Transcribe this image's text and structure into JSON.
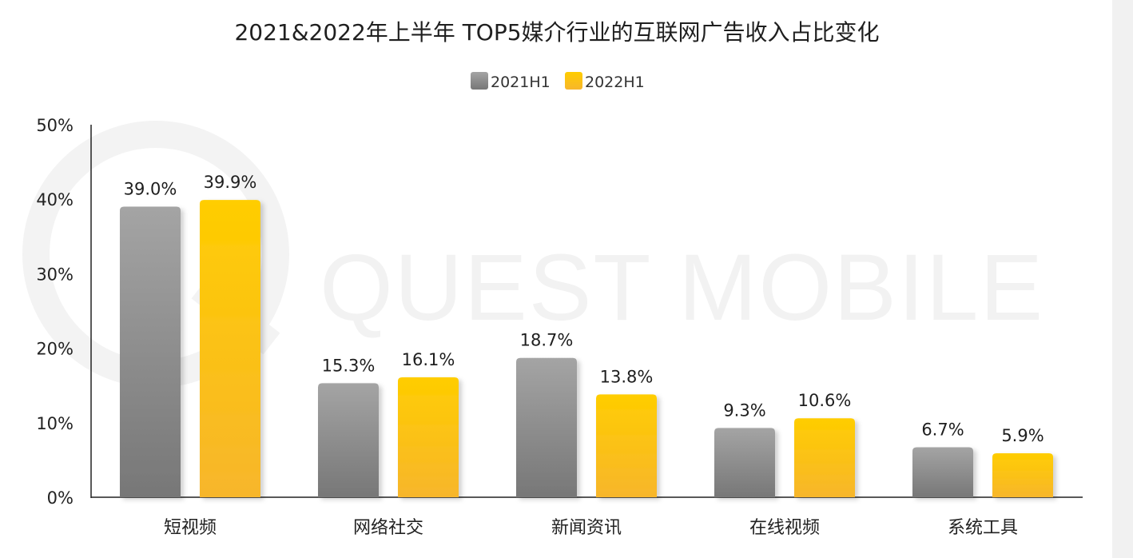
{
  "chart_data": {
    "type": "bar",
    "title": "2021&2022年上半年 TOP5媒介行业的互联网广告收入占比变化",
    "categories": [
      "短视频",
      "网络社交",
      "新闻资讯",
      "在线视频",
      "系统工具"
    ],
    "series": [
      {
        "name": "2021H1",
        "values": [
          39.0,
          15.3,
          18.7,
          9.3,
          6.7
        ],
        "labels": [
          "39.0%",
          "15.3%",
          "18.7%",
          "9.3%",
          "6.7%"
        ],
        "color_top": "#a4a4a4",
        "color_bottom": "#777777"
      },
      {
        "name": "2022H1",
        "values": [
          39.9,
          16.1,
          13.8,
          10.6,
          5.9
        ],
        "labels": [
          "39.9%",
          "16.1%",
          "13.8%",
          "10.6%",
          "5.9%"
        ],
        "color_top": "#ffcd00",
        "color_bottom": "#f7b62c"
      }
    ],
    "y_ticks": [
      "0%",
      "10%",
      "20%",
      "30%",
      "40%",
      "50%"
    ],
    "ylim": [
      0,
      50
    ],
    "xlabel": "",
    "ylabel": "",
    "legend_position": "top-center",
    "grid": false
  },
  "watermark": {
    "text": "QUEST MOBILE"
  }
}
